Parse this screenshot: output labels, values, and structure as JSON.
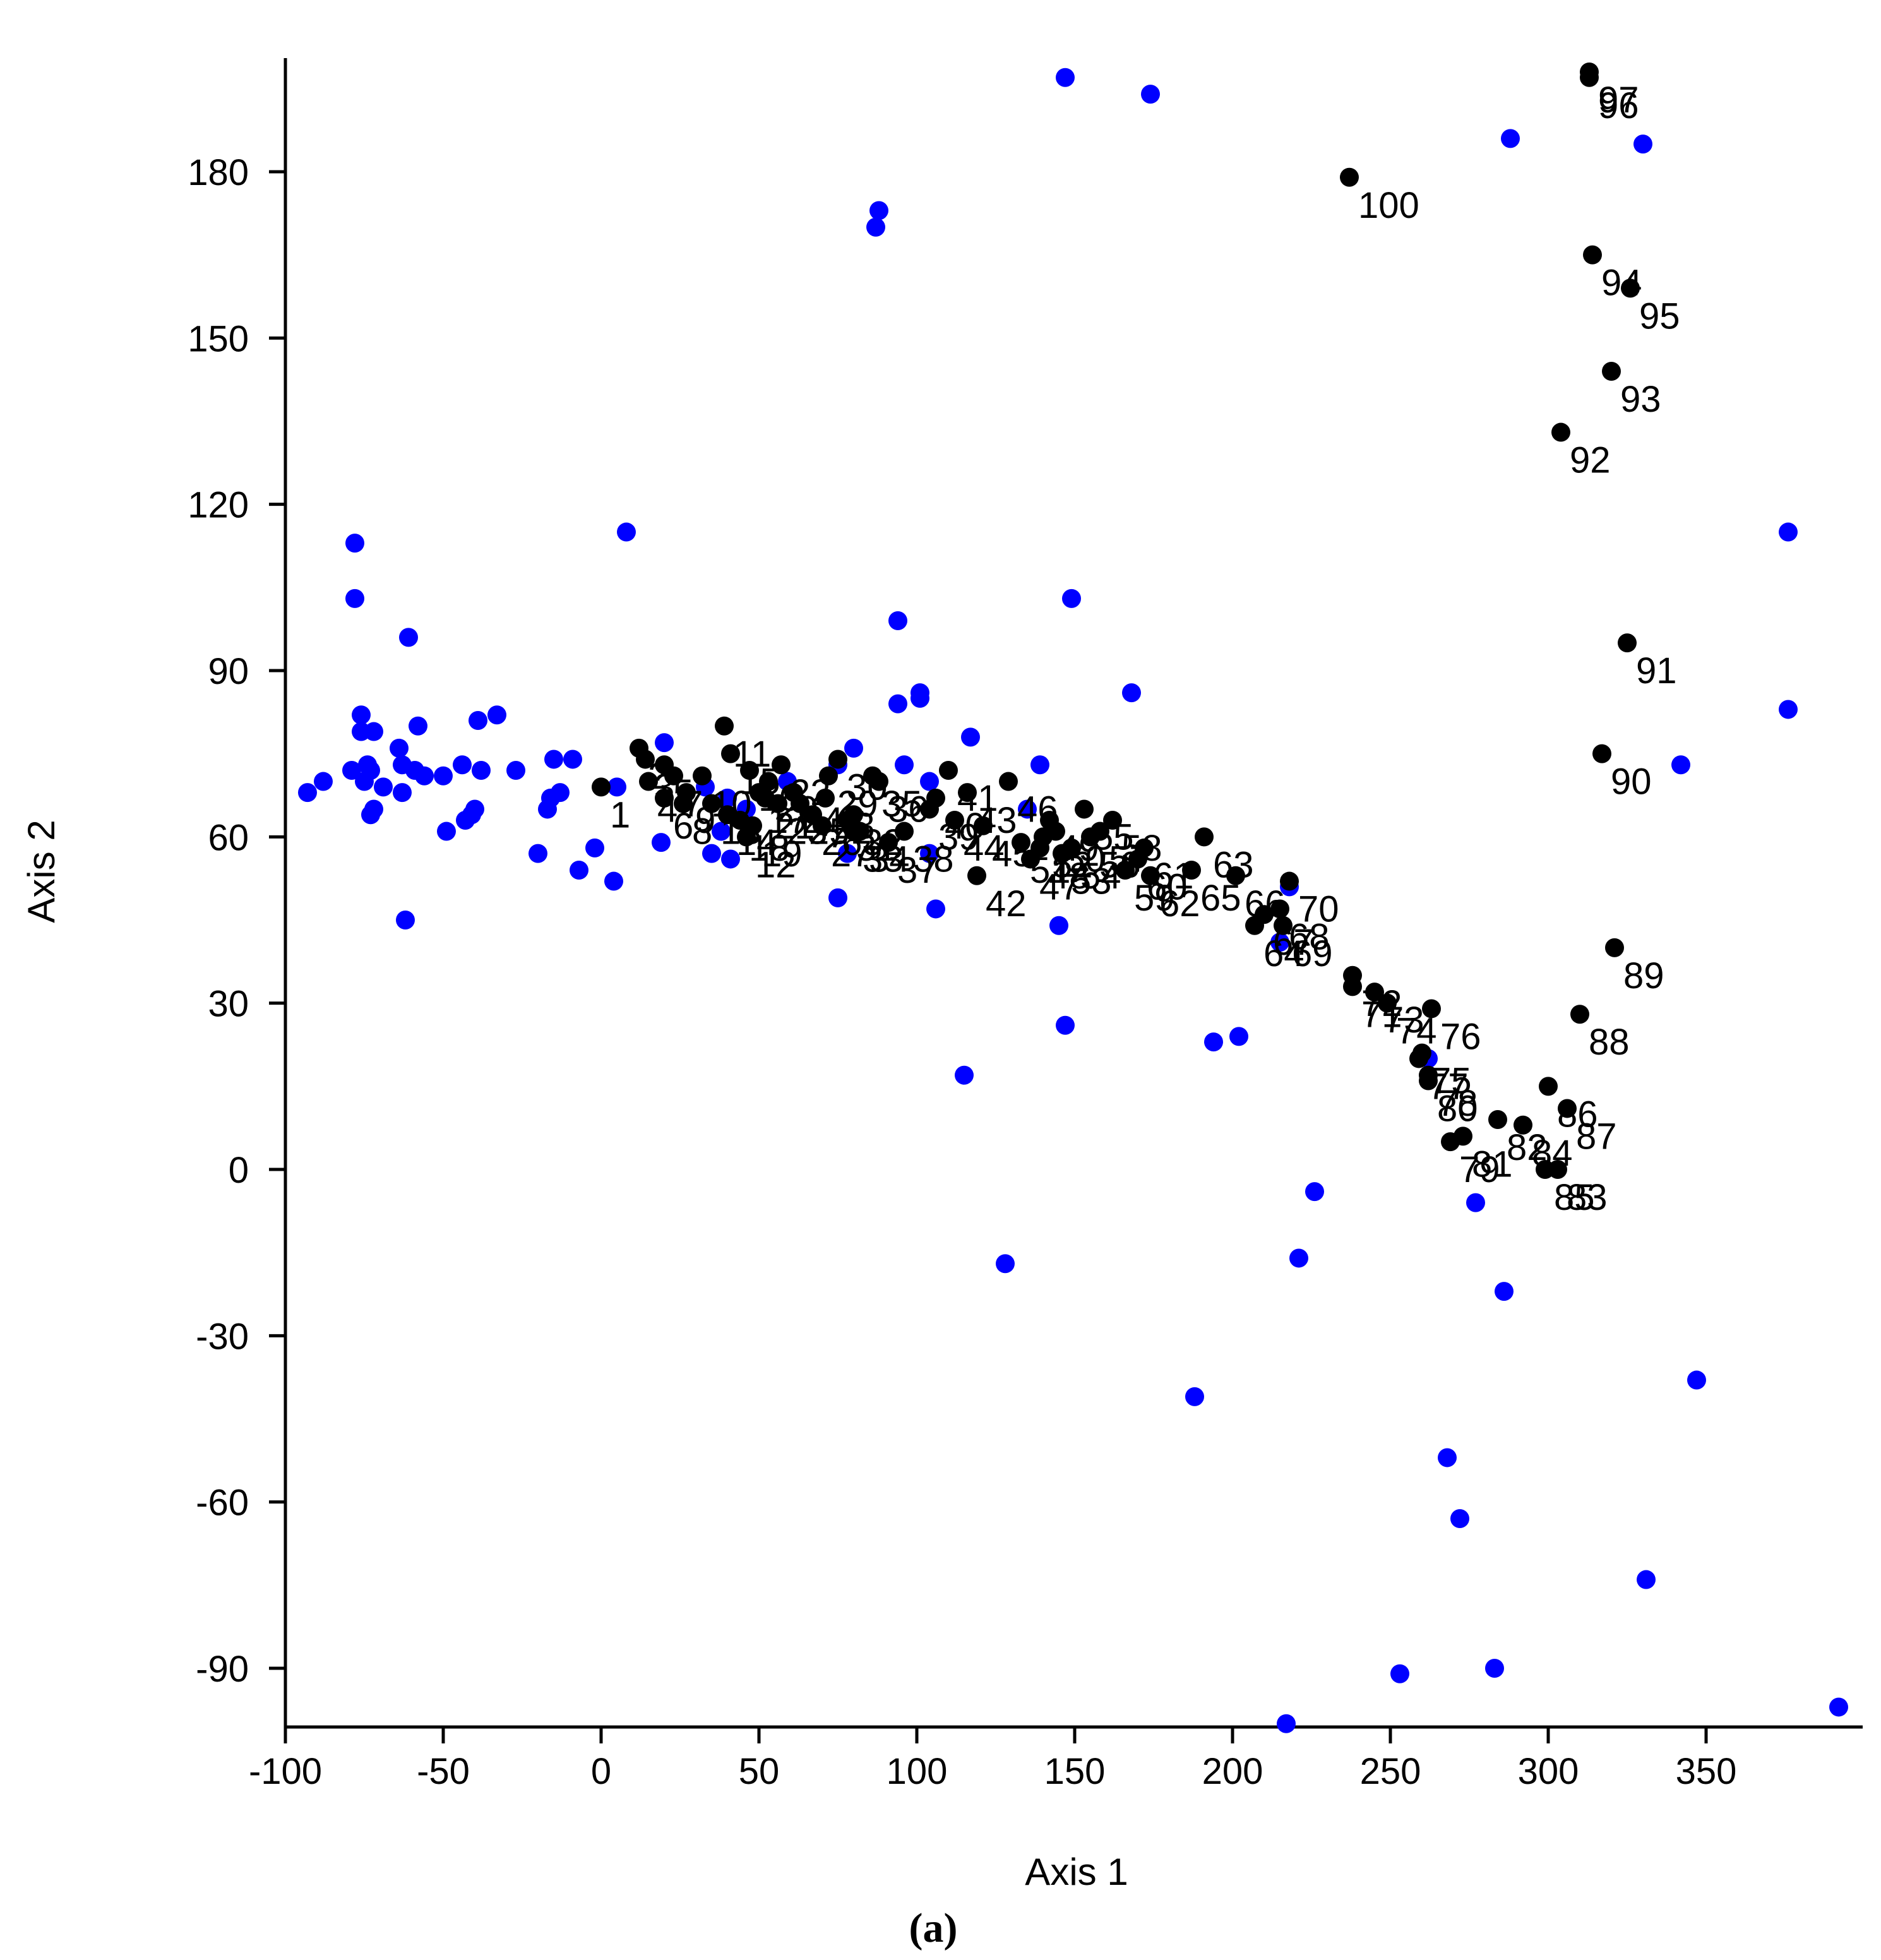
{
  "chart_data": {
    "type": "scatter",
    "title": "",
    "xlabel": "Axis 1",
    "ylabel": "Axis 2",
    "panel_label": "(a)",
    "xlim": [
      -100,
      400
    ],
    "ylim": [
      -100,
      200
    ],
    "xticks": [
      -100,
      -50,
      0,
      50,
      100,
      150,
      200,
      250,
      300,
      350
    ],
    "xtick_labels": [
      "-100",
      "-50",
      "0",
      "50",
      "100",
      "150",
      "200",
      "250",
      "300",
      "350"
    ],
    "yticks": [
      -90,
      -60,
      -30,
      0,
      30,
      60,
      90,
      120,
      150,
      180
    ],
    "ytick_labels": [
      "-90",
      "-60",
      "-30",
      "0",
      "30",
      "60",
      "90",
      "120",
      "150",
      "180"
    ],
    "grid": false,
    "colors": {
      "blue_points": "#0000ff",
      "black_points": "#000000",
      "axes": "#000000"
    },
    "blue_points": [
      [
        -93,
        68
      ],
      [
        -88,
        70
      ],
      [
        -79,
        72
      ],
      [
        -78,
        113
      ],
      [
        -78,
        103
      ],
      [
        -76,
        82
      ],
      [
        -76,
        79
      ],
      [
        -75,
        70
      ],
      [
        -74,
        73
      ],
      [
        -73,
        64
      ],
      [
        -73,
        72
      ],
      [
        -72,
        79
      ],
      [
        -72,
        65
      ],
      [
        -69,
        69
      ],
      [
        -64,
        76
      ],
      [
        -63,
        73
      ],
      [
        -63,
        68
      ],
      [
        -62,
        45
      ],
      [
        -61,
        96
      ],
      [
        -59,
        72
      ],
      [
        -58,
        80
      ],
      [
        -56,
        71
      ],
      [
        -50,
        71
      ],
      [
        -49,
        61
      ],
      [
        -44,
        73
      ],
      [
        -43,
        63
      ],
      [
        -41,
        64
      ],
      [
        -40,
        65
      ],
      [
        -39,
        81
      ],
      [
        -38,
        72
      ],
      [
        -33,
        82
      ],
      [
        -27,
        72
      ],
      [
        -20,
        57
      ],
      [
        -17,
        65
      ],
      [
        -16,
        67
      ],
      [
        -15,
        74
      ],
      [
        -13,
        68
      ],
      [
        -9,
        74
      ],
      [
        -7,
        54
      ],
      [
        -2,
        58
      ],
      [
        4,
        52
      ],
      [
        5,
        69
      ],
      [
        8,
        115
      ],
      [
        19,
        59
      ],
      [
        20,
        77
      ],
      [
        33,
        69
      ],
      [
        35,
        57
      ],
      [
        38,
        61
      ],
      [
        40,
        67
      ],
      [
        41,
        56
      ],
      [
        46,
        65
      ],
      [
        59,
        70
      ],
      [
        75,
        73
      ],
      [
        75,
        49
      ],
      [
        78,
        57
      ],
      [
        80,
        76
      ],
      [
        87,
        170
      ],
      [
        88,
        173
      ],
      [
        94,
        99
      ],
      [
        94,
        84
      ],
      [
        96,
        73
      ],
      [
        101,
        86
      ],
      [
        101,
        85
      ],
      [
        104,
        70
      ],
      [
        104,
        57
      ],
      [
        106,
        47
      ],
      [
        115,
        17
      ],
      [
        117,
        78
      ],
      [
        128,
        -17
      ],
      [
        135,
        65
      ],
      [
        139,
        73
      ],
      [
        145,
        44
      ],
      [
        147,
        26
      ],
      [
        147,
        197
      ],
      [
        149,
        103
      ],
      [
        168,
        86
      ],
      [
        174,
        194
      ],
      [
        188,
        -41
      ],
      [
        194,
        23
      ],
      [
        202,
        24
      ],
      [
        215,
        41
      ],
      [
        217,
        -100
      ],
      [
        218,
        51
      ],
      [
        221,
        -16
      ],
      [
        226,
        -4
      ],
      [
        253,
        -91
      ],
      [
        262,
        20
      ],
      [
        268,
        -52
      ],
      [
        272,
        -63
      ],
      [
        277,
        -6
      ],
      [
        283,
        -90
      ],
      [
        286,
        -22
      ],
      [
        288,
        186
      ],
      [
        330,
        185
      ],
      [
        331,
        -74
      ],
      [
        342,
        73
      ],
      [
        347,
        -38
      ],
      [
        376,
        115
      ],
      [
        376,
        83
      ],
      [
        392,
        -97
      ]
    ],
    "black_points": [
      {
        "label": "1",
        "x": 0,
        "y": 69
      },
      {
        "label": "2",
        "x": 12,
        "y": 76
      },
      {
        "label": "3",
        "x": 14,
        "y": 74
      },
      {
        "label": "4",
        "x": 15,
        "y": 70
      },
      {
        "label": "5",
        "x": 20,
        "y": 73
      },
      {
        "label": "6",
        "x": 20,
        "y": 67
      },
      {
        "label": "7",
        "x": 23,
        "y": 71
      },
      {
        "label": "8",
        "x": 26,
        "y": 66
      },
      {
        "label": "9",
        "x": 27,
        "y": 68
      },
      {
        "label": "10",
        "x": 32,
        "y": 71
      },
      {
        "label": "11",
        "x": 39,
        "y": 80
      },
      {
        "label": "12",
        "x": 46,
        "y": 60
      },
      {
        "label": "13",
        "x": 35,
        "y": 66
      },
      {
        "label": "14",
        "x": 40,
        "y": 64
      },
      {
        "label": "15",
        "x": 41,
        "y": 75
      },
      {
        "label": "16",
        "x": 47,
        "y": 72
      },
      {
        "label": "17",
        "x": 50,
        "y": 68
      },
      {
        "label": "18",
        "x": 44,
        "y": 63
      },
      {
        "label": "19",
        "x": 48,
        "y": 62
      },
      {
        "label": "20",
        "x": 53,
        "y": 70
      },
      {
        "label": "21",
        "x": 52,
        "y": 67
      },
      {
        "label": "22",
        "x": 57,
        "y": 73
      },
      {
        "label": "23",
        "x": 56,
        "y": 66
      },
      {
        "label": "24",
        "x": 61,
        "y": 68
      },
      {
        "label": "25",
        "x": 63,
        "y": 66
      },
      {
        "label": "26",
        "x": 67,
        "y": 64
      },
      {
        "label": "27",
        "x": 70,
        "y": 62
      },
      {
        "label": "28",
        "x": 71,
        "y": 67
      },
      {
        "label": "29",
        "x": 72,
        "y": 71
      },
      {
        "label": "30",
        "x": 75,
        "y": 74
      },
      {
        "label": "31",
        "x": 78,
        "y": 63
      },
      {
        "label": "32",
        "x": 80,
        "y": 64
      },
      {
        "label": "33",
        "x": 80,
        "y": 61
      },
      {
        "label": "34",
        "x": 82,
        "y": 61
      },
      {
        "label": "35",
        "x": 86,
        "y": 71
      },
      {
        "label": "36",
        "x": 88,
        "y": 70
      },
      {
        "label": "37",
        "x": 91,
        "y": 59
      },
      {
        "label": "38",
        "x": 96,
        "y": 61
      },
      {
        "label": "39",
        "x": 104,
        "y": 65
      },
      {
        "label": "40",
        "x": 106,
        "y": 67
      },
      {
        "label": "41",
        "x": 110,
        "y": 72
      },
      {
        "label": "42",
        "x": 119,
        "y": 53
      },
      {
        "label": "43",
        "x": 116,
        "y": 68
      },
      {
        "label": "44",
        "x": 112,
        "y": 63
      },
      {
        "label": "45",
        "x": 121,
        "y": 62
      },
      {
        "label": "46",
        "x": 129,
        "y": 70
      },
      {
        "label": "47",
        "x": 136,
        "y": 56
      },
      {
        "label": "48",
        "x": 139,
        "y": 58
      },
      {
        "label": "49",
        "x": 142,
        "y": 63
      },
      {
        "label": "50",
        "x": 144,
        "y": 61
      },
      {
        "label": "51",
        "x": 133,
        "y": 59
      },
      {
        "label": "52",
        "x": 140,
        "y": 60
      },
      {
        "label": "53",
        "x": 146,
        "y": 57
      },
      {
        "label": "54",
        "x": 149,
        "y": 58
      },
      {
        "label": "55",
        "x": 153,
        "y": 65
      },
      {
        "label": "56",
        "x": 155,
        "y": 60
      },
      {
        "label": "57",
        "x": 158,
        "y": 61
      },
      {
        "label": "58",
        "x": 162,
        "y": 63
      },
      {
        "label": "59",
        "x": 166,
        "y": 54
      },
      {
        "label": "60",
        "x": 170,
        "y": 56
      },
      {
        "label": "61",
        "x": 172,
        "y": 58
      },
      {
        "label": "62",
        "x": 174,
        "y": 53
      },
      {
        "label": "63",
        "x": 191,
        "y": 60
      },
      {
        "label": "64",
        "x": 207,
        "y": 44
      },
      {
        "label": "65",
        "x": 187,
        "y": 54
      },
      {
        "label": "66",
        "x": 201,
        "y": 53
      },
      {
        "label": "67",
        "x": 210,
        "y": 46
      },
      {
        "label": "68",
        "x": 215,
        "y": 47
      },
      {
        "label": "69",
        "x": 216,
        "y": 44
      },
      {
        "label": "70",
        "x": 218,
        "y": 52
      },
      {
        "label": "71",
        "x": 238,
        "y": 33
      },
      {
        "label": "72",
        "x": 238,
        "y": 35
      },
      {
        "label": "73",
        "x": 245,
        "y": 32
      },
      {
        "label": "74",
        "x": 249,
        "y": 30
      },
      {
        "label": "75",
        "x": 260,
        "y": 21
      },
      {
        "label": "76",
        "x": 263,
        "y": 29
      },
      {
        "label": "77",
        "x": 259,
        "y": 20
      },
      {
        "label": "78",
        "x": 262,
        "y": 17
      },
      {
        "label": "79",
        "x": 269,
        "y": 5
      },
      {
        "label": "80",
        "x": 262,
        "y": 16
      },
      {
        "label": "81",
        "x": 273,
        "y": 6
      },
      {
        "label": "82",
        "x": 284,
        "y": 9
      },
      {
        "label": "83",
        "x": 303,
        "y": 0
      },
      {
        "label": "84",
        "x": 292,
        "y": 8
      },
      {
        "label": "85",
        "x": 299,
        "y": 0
      },
      {
        "label": "86",
        "x": 300,
        "y": 15
      },
      {
        "label": "87",
        "x": 306,
        "y": 11
      },
      {
        "label": "88",
        "x": 310,
        "y": 28
      },
      {
        "label": "89",
        "x": 321,
        "y": 40
      },
      {
        "label": "90",
        "x": 317,
        "y": 75
      },
      {
        "label": "91",
        "x": 325,
        "y": 95
      },
      {
        "label": "92",
        "x": 304,
        "y": 133
      },
      {
        "label": "93",
        "x": 320,
        "y": 144
      },
      {
        "label": "94",
        "x": 314,
        "y": 165
      },
      {
        "label": "95",
        "x": 326,
        "y": 159
      },
      {
        "label": "96",
        "x": 313,
        "y": 197
      },
      {
        "label": "97",
        "x": 313,
        "y": 198
      },
      {
        "label": "100",
        "x": 237,
        "y": 179
      }
    ]
  }
}
